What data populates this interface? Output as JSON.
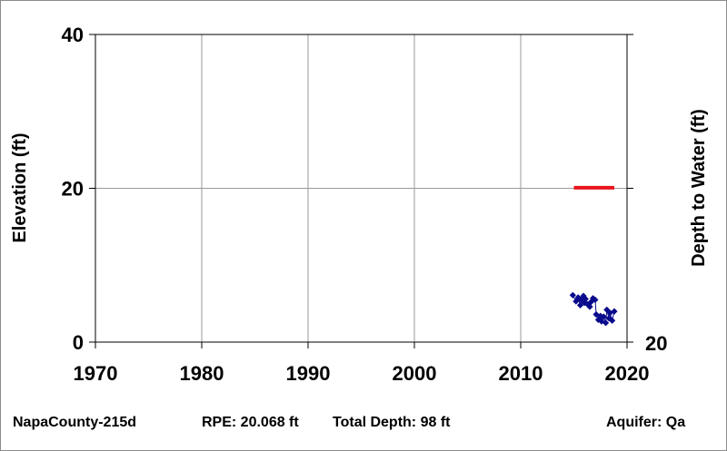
{
  "footer": {
    "well_name": "NapaCounty-215d",
    "rpe": "RPE: 20.068 ft",
    "total_depth": "Total Depth: 98 ft",
    "aquifer": "Aquifer: Qa"
  },
  "chart_data": {
    "type": "scatter",
    "title": "",
    "xlabel": "",
    "ylabel": "Elevation (ft)",
    "y2label": "Depth to Water (ft)",
    "xlim": [
      1970,
      2020
    ],
    "ylim": [
      0,
      40
    ],
    "x_ticks": [
      "1970",
      "1980",
      "1990",
      "2000",
      "2010",
      "2020"
    ],
    "y_ticks": [
      "0",
      "20",
      "40"
    ],
    "y2_ticks": [
      "20"
    ],
    "grid": true,
    "series": [
      {
        "kind": "reference-line",
        "color": "#e8141b",
        "x": [
          2015.0,
          2018.8
        ],
        "y": [
          20.068,
          20.068
        ]
      },
      {
        "kind": "measurements",
        "color": "#0a0a8c",
        "x": [
          2014.9,
          2015.2,
          2015.4,
          2015.6,
          2015.7,
          2015.9,
          2016.0,
          2016.1,
          2016.3,
          2016.5,
          2016.6,
          2016.8,
          2017.0,
          2017.1,
          2017.3,
          2017.5,
          2017.6,
          2017.8,
          2018.0,
          2018.1,
          2018.3,
          2018.4,
          2018.6,
          2018.8
        ],
        "y": [
          6.1,
          5.3,
          5.8,
          4.8,
          5.5,
          6.0,
          5.1,
          5.6,
          4.9,
          4.6,
          5.2,
          5.7,
          5.5,
          3.6,
          2.9,
          3.4,
          2.7,
          3.3,
          2.5,
          4.2,
          3.1,
          3.8,
          2.8,
          4.0
        ]
      }
    ]
  }
}
